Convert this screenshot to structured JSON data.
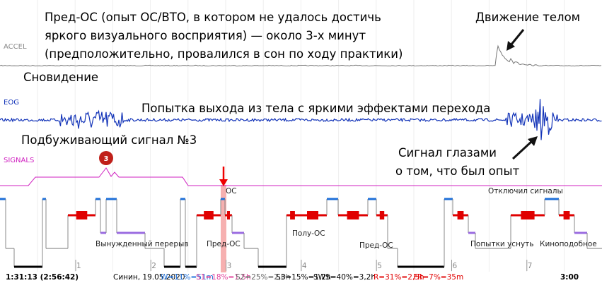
{
  "annotations": {
    "pre_oc_lines": [
      "Пред-ОС (опыт ОС/ВТО, в котором не удалось достичь",
      "яркого визуального восприятия) — около 3-х минут",
      "(предположительно, провалился в сон по ходу практики)"
    ],
    "body_movement": "Движение телом",
    "dream": "Сновидение",
    "exit_attempt": "Попытка выхода из тела с яркими эффектами перехода",
    "wake_signal": "Подбуживающий сигнал №3",
    "eye_signal_lines": [
      "Сигнал глазами",
      "о том, что был опыт"
    ]
  },
  "channels": [
    "ACCEL",
    "EOG",
    "SIGNALS"
  ],
  "signal_marker": "3",
  "hypnogram_labels": [
    "ОС",
    "Отключил сигналы",
    "Вынужденный перерыв",
    "Пред-ОС",
    "Полу-ОС",
    "Пред-ОС",
    "Попытки уснуть",
    "Киноподобное"
  ],
  "hour_marks": [
    1,
    2,
    3,
    4,
    5,
    6,
    7
  ],
  "status_bar": {
    "time": "1:31:13 (2:56:42)",
    "subject": "Синин, 19.05.2020",
    "stages": [
      {
        "text": "W=11%=51m",
        "color": "#1e6fd9"
      },
      {
        "text": "S1=18%=1,5h",
        "color": "#e0409a"
      },
      {
        "text": "S2=25%=2,0h",
        "color": "#666666"
      },
      {
        "text": "S3=15%=1,2h",
        "color": "#000000"
      },
      {
        "text": "SWS=40%=3,2h",
        "color": "#000000"
      },
      {
        "text": "R=31%=2,5h",
        "color": "#e00000"
      },
      {
        "text": "FR=7%=35m",
        "color": "#e00000"
      }
    ],
    "end_time": "3:00"
  }
}
